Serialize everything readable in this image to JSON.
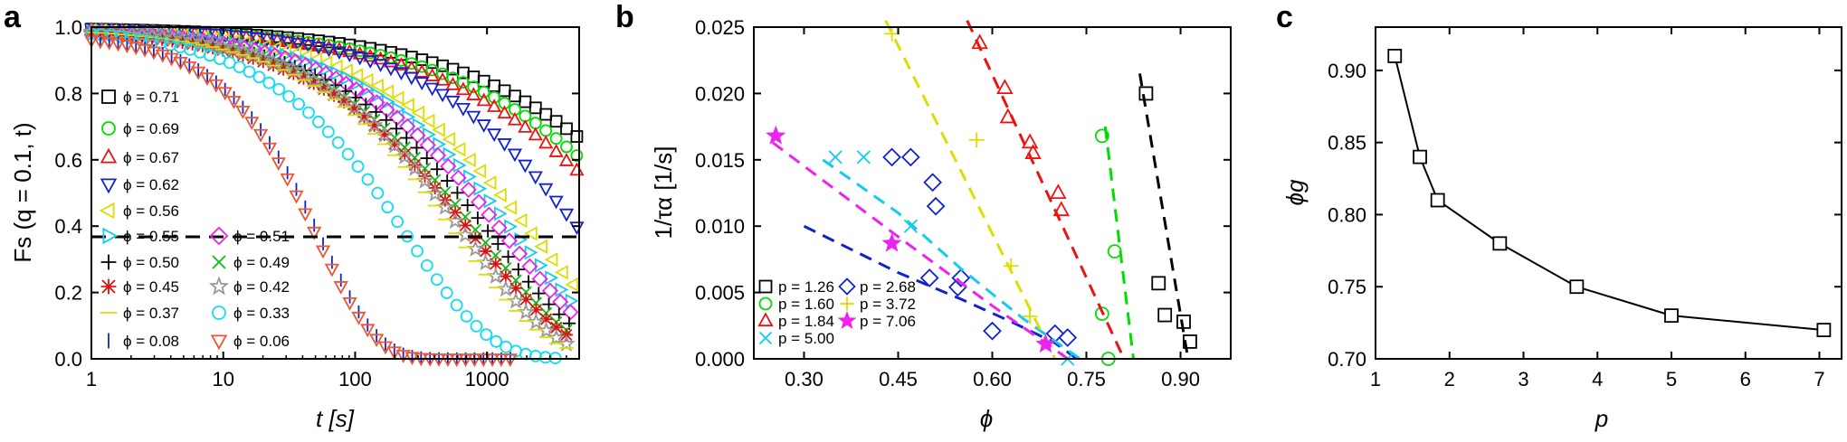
{
  "panels": [
    {
      "id": "a",
      "letter": "a"
    },
    {
      "id": "b",
      "letter": "b"
    },
    {
      "id": "c",
      "letter": "c"
    }
  ],
  "chart_data": [
    {
      "id": "a",
      "type": "scatter",
      "xlabel": "t [s]",
      "ylabel": "Fs (q = 0.1, t)",
      "xscale": "log",
      "xlim": [
        1,
        5000
      ],
      "ylim": [
        0.0,
        1.0
      ],
      "xticks": [
        "1",
        "10",
        "100",
        "1000"
      ],
      "xtick_values": [
        1,
        10,
        100,
        1000
      ],
      "yticks": [
        "0.0",
        "0.2",
        "0.4",
        "0.6",
        "0.8",
        "1.0"
      ],
      "ytick_values": [
        0,
        0.2,
        0.4,
        0.6,
        0.8,
        1.0
      ],
      "reference_line": {
        "y": 0.3679,
        "style": "dashed",
        "color": "#000000"
      },
      "legend_position": "left",
      "series": [
        {
          "name": "ϕ = 0.71",
          "color": "#000000",
          "marker": "square",
          "tau": 30000,
          "beta": 0.5,
          "f0": 1.0,
          "tmax": 4800
        },
        {
          "name": "ϕ = 0.69",
          "color": "#00dd00",
          "marker": "circle",
          "tau": 20000,
          "beta": 0.5,
          "f0": 1.0,
          "tmax": 4800
        },
        {
          "name": "ϕ = 0.67",
          "color": "#ee1111",
          "marker": "triangle-up",
          "tau": 15000,
          "beta": 0.5,
          "f0": 1.0,
          "tmax": 4800
        },
        {
          "name": "ϕ = 0.62",
          "color": "#1122cc",
          "marker": "triangle-down",
          "tau": 5500,
          "beta": 0.6,
          "f0": 1.0,
          "tmax": 4800
        },
        {
          "name": "ϕ = 0.56",
          "color": "#dddd00",
          "marker": "triangle-left",
          "tau": 2300,
          "beta": 0.6,
          "f0": 1.0,
          "tmax": 4500
        },
        {
          "name": "ϕ = 0.55",
          "color": "#11ccee",
          "marker": "triangle-right",
          "tau": 1700,
          "beta": 0.6,
          "f0": 1.0,
          "tmax": 4300
        },
        {
          "name": "ϕ = 0.51",
          "color": "#ee22ee",
          "marker": "diamond",
          "tau": 1400,
          "beta": 0.6,
          "f0": 1.0,
          "tmax": 4300
        },
        {
          "name": "ϕ = 0.50",
          "color": "#000000",
          "marker": "plus",
          "tau": 1100,
          "beta": 0.6,
          "f0": 1.0,
          "tmax": 4200
        },
        {
          "name": "ϕ = 0.49",
          "color": "#11bb11",
          "marker": "x",
          "tau": 900,
          "beta": 0.6,
          "f0": 1.0,
          "tmax": 4000
        },
        {
          "name": "ϕ = 0.45",
          "color": "#dd1111",
          "marker": "asterisk",
          "tau": 800,
          "beta": 0.6,
          "f0": 1.0,
          "tmax": 4000
        },
        {
          "name": "ϕ = 0.42",
          "color": "#999999",
          "marker": "star",
          "tau": 700,
          "beta": 0.65,
          "f0": 1.0,
          "tmax": 4000
        },
        {
          "name": "ϕ = 0.37",
          "color": "#dddd00",
          "marker": "hline",
          "tau": 600,
          "beta": 0.65,
          "f0": 1.0,
          "tmax": 4000
        },
        {
          "name": "ϕ = 0.33",
          "color": "#11ddee",
          "marker": "circle",
          "tau": 250,
          "beta": 0.7,
          "f0": 1.0,
          "tmax": 3300
        },
        {
          "name": "ϕ = 0.08",
          "color": "#1122cc",
          "marker": "vline",
          "tau": 55,
          "beta": 1.0,
          "f0": 0.98,
          "tmax": 1500
        },
        {
          "name": "ϕ = 0.06",
          "color": "#ee5533",
          "marker": "triangle-down",
          "tau": 52,
          "beta": 1.0,
          "f0": 0.98,
          "tmax": 1500
        }
      ]
    },
    {
      "id": "b",
      "type": "scatter",
      "xlabel": "ϕ",
      "ylabel": "1/τα [1/s]",
      "xlim": [
        0.22,
        0.98
      ],
      "ylim": [
        0.0,
        0.025
      ],
      "xticks": [
        "0.30",
        "0.45",
        "0.60",
        "0.75",
        "0.90"
      ],
      "xtick_values": [
        0.3,
        0.45,
        0.6,
        0.75,
        0.9
      ],
      "yticks": [
        "0.000",
        "0.005",
        "0.010",
        "0.015",
        "0.020",
        "0.025"
      ],
      "ytick_values": [
        0,
        0.005,
        0.01,
        0.015,
        0.02,
        0.025
      ],
      "legend_position": "bottom-left",
      "series": [
        {
          "name": "p = 1.26",
          "color": "#000000",
          "marker": "square",
          "points": [
            [
              0.845,
              0.02
            ],
            [
              0.865,
              0.0057
            ],
            [
              0.875,
              0.0033
            ],
            [
              0.905,
              0.0028
            ],
            [
              0.915,
              0.0013
            ]
          ],
          "fit": [
            [
              0.835,
              0.0215
            ],
            [
              0.912,
              0.0
            ]
          ]
        },
        {
          "name": "p = 1.60",
          "color": "#00dd00",
          "marker": "circle",
          "points": [
            [
              0.775,
              0.0168
            ],
            [
              0.795,
              0.0081
            ],
            [
              0.775,
              0.0034
            ],
            [
              0.785,
              0.0
            ]
          ],
          "fit": [
            [
              0.78,
              0.0175
            ],
            [
              0.825,
              0.0
            ]
          ]
        },
        {
          "name": "p = 1.84",
          "color": "#ee1111",
          "marker": "triangle-up",
          "points": [
            [
              0.58,
              0.0238
            ],
            [
              0.62,
              0.0204
            ],
            [
              0.625,
              0.0182
            ],
            [
              0.66,
              0.0163
            ],
            [
              0.665,
              0.0155
            ],
            [
              0.705,
              0.0125
            ],
            [
              0.71,
              0.0112
            ]
          ],
          "fit": [
            [
              0.56,
              0.0255
            ],
            [
              0.81,
              0.0
            ]
          ]
        },
        {
          "name": "p = 2.68",
          "color": "#1122cc",
          "marker": "diamond",
          "points": [
            [
              0.44,
              0.0152
            ],
            [
              0.47,
              0.0152
            ],
            [
              0.505,
              0.0133
            ],
            [
              0.51,
              0.0115
            ],
            [
              0.5,
              0.0061
            ],
            [
              0.55,
              0.0061
            ],
            [
              0.545,
              0.0054
            ],
            [
              0.6,
              0.0021
            ],
            [
              0.7,
              0.0019
            ],
            [
              0.72,
              0.0016
            ]
          ],
          "fit": [
            [
              0.3,
              0.01
            ],
            [
              0.45,
              0.0065
            ],
            [
              0.55,
              0.0045
            ],
            [
              0.63,
              0.0028
            ],
            [
              0.7,
              0.0012
            ],
            [
              0.735,
              0.0
            ]
          ]
        },
        {
          "name": "p = 5.00",
          "color": "#11ccee",
          "marker": "x",
          "points": [
            [
              0.35,
              0.0152
            ],
            [
              0.395,
              0.0152
            ],
            [
              0.47,
              0.01
            ],
            [
              0.72,
              0.0
            ]
          ],
          "fit": [
            [
              0.33,
              0.015
            ],
            [
              0.45,
              0.011
            ],
            [
              0.55,
              0.0068
            ],
            [
              0.65,
              0.003
            ],
            [
              0.74,
              0.0
            ]
          ]
        },
        {
          "name": "p = 3.72",
          "color": "#dddd00",
          "marker": "plus",
          "points": [
            [
              0.44,
              0.0245
            ],
            [
              0.575,
              0.0165
            ],
            [
              0.63,
              0.007
            ],
            [
              0.66,
              0.0032
            ]
          ],
          "fit": [
            [
              0.43,
              0.0255
            ],
            [
              0.7,
              0.0
            ]
          ]
        },
        {
          "name": "p = 7.06",
          "color": "#ee22ee",
          "marker": "star",
          "points": [
            [
              0.255,
              0.0168
            ],
            [
              0.44,
              0.0087
            ],
            [
              0.685,
              0.0011
            ]
          ],
          "fit": [
            [
              0.25,
              0.0163
            ],
            [
              0.45,
              0.0092
            ],
            [
              0.6,
              0.004
            ],
            [
              0.7,
              0.0007
            ],
            [
              0.72,
              0.0
            ]
          ]
        }
      ]
    },
    {
      "id": "c",
      "type": "line",
      "xlabel": "p",
      "ylabel": "ϕg",
      "xlim": [
        1,
        7.3
      ],
      "ylim": [
        0.7,
        0.93
      ],
      "xticks": [
        "1",
        "2",
        "3",
        "4",
        "5",
        "6",
        "7"
      ],
      "xtick_values": [
        1,
        2,
        3,
        4,
        5,
        6,
        7
      ],
      "yticks": [
        "0.70",
        "0.75",
        "0.80",
        "0.85",
        "0.90"
      ],
      "ytick_values": [
        0.7,
        0.75,
        0.8,
        0.85,
        0.9
      ],
      "series": [
        {
          "color": "#000000",
          "marker": "square",
          "points": [
            [
              1.26,
              0.91
            ],
            [
              1.6,
              0.84
            ],
            [
              1.84,
              0.81
            ],
            [
              2.68,
              0.78
            ],
            [
              3.72,
              0.75
            ],
            [
              5.0,
              0.73
            ],
            [
              7.06,
              0.72
            ]
          ]
        }
      ]
    }
  ]
}
